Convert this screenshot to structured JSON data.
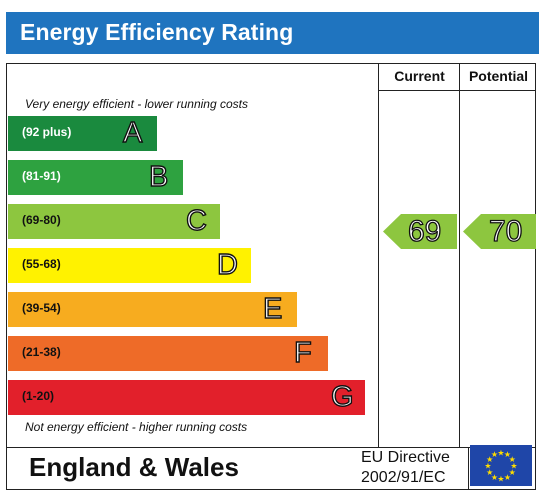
{
  "header": {
    "title": "Energy Efficiency Rating"
  },
  "columns": {
    "current": "Current",
    "potential": "Potential"
  },
  "notes": {
    "top": "Very energy efficient - lower running costs",
    "bottom": "Not energy efficient - higher running costs"
  },
  "chart_data": {
    "type": "bar",
    "title": "Energy Efficiency Rating",
    "bands": [
      {
        "letter": "A",
        "range": "(92 plus)",
        "color": "#1a8a3e",
        "text_color": "#ffffff"
      },
      {
        "letter": "B",
        "range": "(81-91)",
        "color": "#2ea240",
        "text_color": "#ffffff"
      },
      {
        "letter": "C",
        "range": "(69-80)",
        "color": "#8dc63f",
        "text_color": "#111111"
      },
      {
        "letter": "D",
        "range": "(55-68)",
        "color": "#fff200",
        "text_color": "#111111"
      },
      {
        "letter": "E",
        "range": "(39-54)",
        "color": "#f7ac1f",
        "text_color": "#111111"
      },
      {
        "letter": "F",
        "range": "(21-38)",
        "color": "#ee6b28",
        "text_color": "#111111"
      },
      {
        "letter": "G",
        "range": "(1-20)",
        "color": "#e2202b",
        "text_color": "#111111"
      }
    ],
    "current": {
      "value": "69",
      "band": "C",
      "color": "#8dc63f"
    },
    "potential": {
      "value": "70",
      "band": "C",
      "color": "#8dc63f"
    }
  },
  "footer": {
    "region": "England & Wales",
    "directive_line1": "EU Directive",
    "directive_line2": "2002/91/EC",
    "flag_icon": "eu-flag-icon"
  }
}
